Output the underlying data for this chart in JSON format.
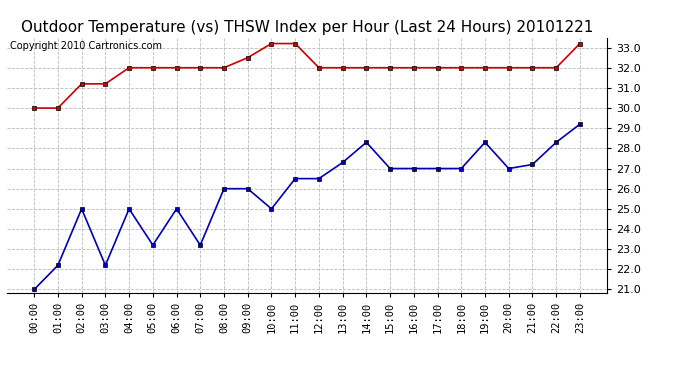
{
  "title": "Outdoor Temperature (vs) THSW Index per Hour (Last 24 Hours) 20101221",
  "copyright": "Copyright 2010 Cartronics.com",
  "hours": [
    "00:00",
    "01:00",
    "02:00",
    "03:00",
    "04:00",
    "05:00",
    "06:00",
    "07:00",
    "08:00",
    "09:00",
    "10:00",
    "11:00",
    "12:00",
    "13:00",
    "14:00",
    "15:00",
    "16:00",
    "17:00",
    "18:00",
    "19:00",
    "20:00",
    "21:00",
    "22:00",
    "23:00"
  ],
  "temp_blue": [
    21.0,
    22.2,
    25.0,
    22.2,
    25.0,
    23.2,
    25.0,
    23.2,
    26.0,
    26.0,
    25.0,
    26.5,
    26.5,
    27.3,
    28.3,
    27.0,
    27.0,
    27.0,
    27.0,
    28.3,
    27.0,
    27.2,
    28.3,
    29.2
  ],
  "thsw_red": [
    30.0,
    30.0,
    31.2,
    31.2,
    32.0,
    32.0,
    32.0,
    32.0,
    32.0,
    32.5,
    33.2,
    33.2,
    32.0,
    32.0,
    32.0,
    32.0,
    32.0,
    32.0,
    32.0,
    32.0,
    32.0,
    32.0,
    32.0,
    33.2
  ],
  "ylim_min": 21.0,
  "ylim_max": 33.5,
  "yticks": [
    21.0,
    22.0,
    23.0,
    24.0,
    25.0,
    26.0,
    27.0,
    28.0,
    29.0,
    30.0,
    31.0,
    32.0,
    33.0
  ],
  "blue_color": "#0000bb",
  "red_color": "#cc0000",
  "bg_color": "#ffffff",
  "grid_color": "#bbbbbb",
  "title_fontsize": 11,
  "copyright_fontsize": 7,
  "tick_fontsize": 7.5,
  "ytick_fontsize": 8
}
